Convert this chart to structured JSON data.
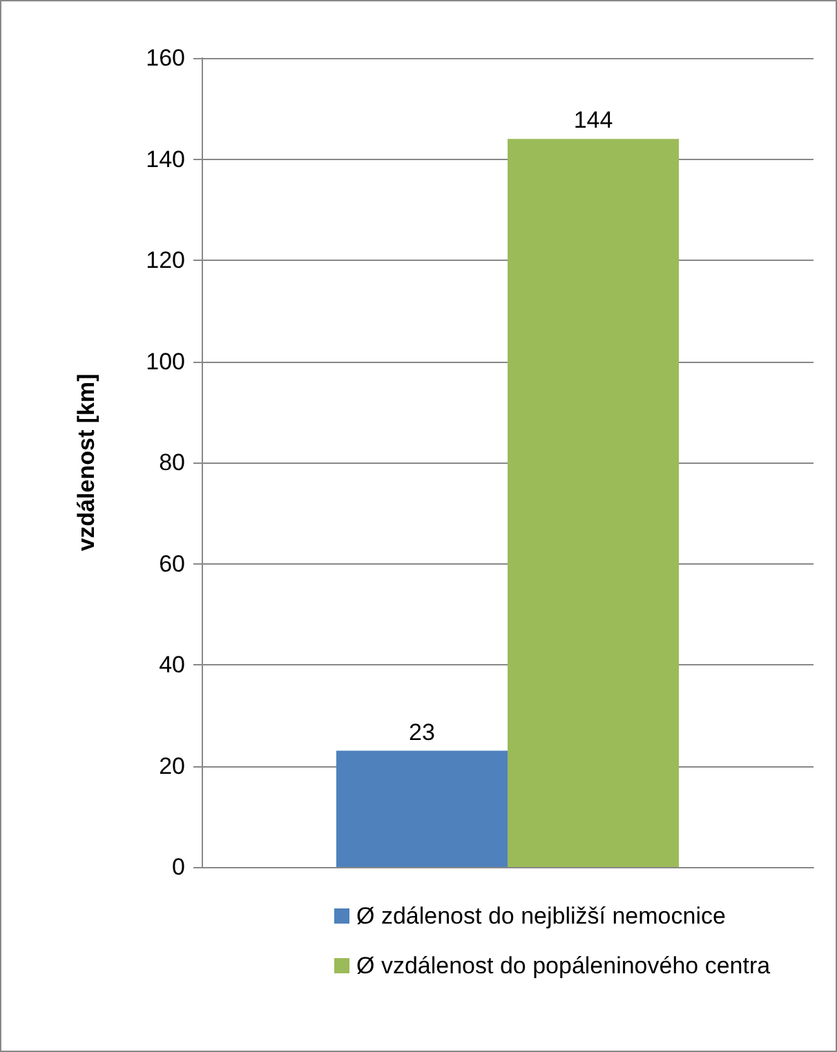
{
  "chart_data": {
    "type": "bar",
    "ylabel": "vzdálenost [km]",
    "categories": [
      null
    ],
    "series": [
      {
        "name": "Ø zdálenost do nejbližší nemocnice",
        "color": "#4f81bd",
        "values": [
          23
        ]
      },
      {
        "name": "Ø vzdálenost do popáleninového centra",
        "color": "#9bbb59",
        "values": [
          144
        ]
      }
    ],
    "ylim": [
      0,
      160
    ],
    "yticks": [
      0,
      20,
      40,
      60,
      80,
      100,
      120,
      140,
      160
    ],
    "grid": "y",
    "legend": "bottom",
    "data_labels": true
  }
}
